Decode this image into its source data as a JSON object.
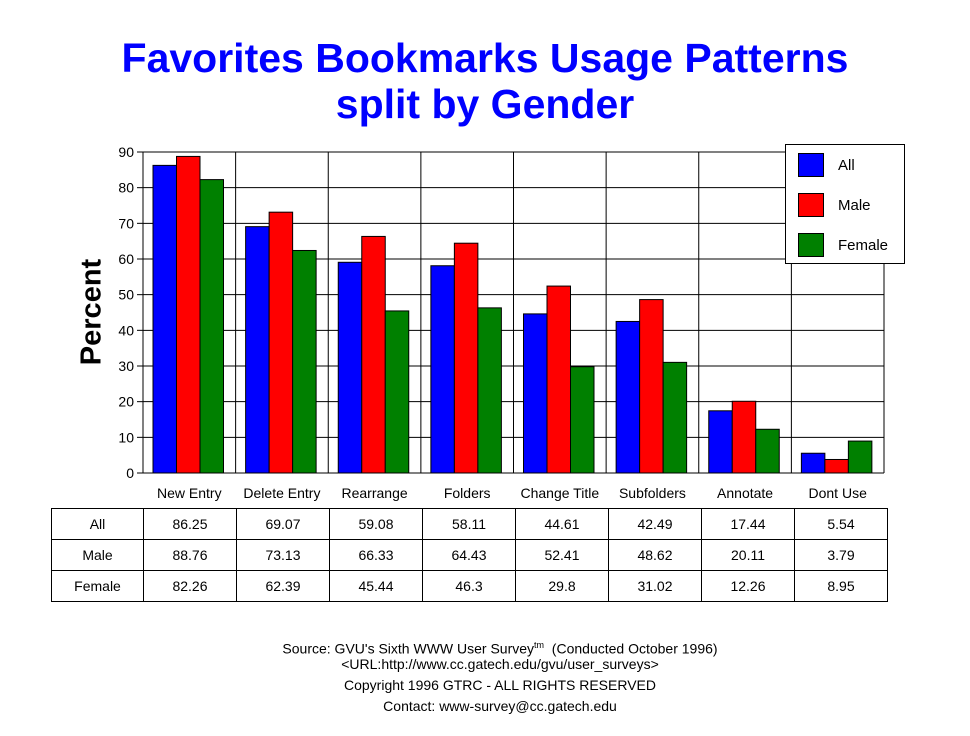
{
  "title_line1": "Favorites Bookmarks Usage Patterns",
  "title_line2": "split by Gender",
  "chart_data": {
    "type": "bar",
    "title": "Favorites Bookmarks Usage Patterns split by Gender",
    "ylabel": "Percent",
    "xlabel": "",
    "ylim": [
      0,
      90
    ],
    "yticks": [
      0,
      10,
      20,
      30,
      40,
      50,
      60,
      70,
      80,
      90
    ],
    "grid": true,
    "legend_position": "top-right",
    "categories": [
      "New Entry",
      "Delete Entry",
      "Rearrange",
      "Folders",
      "Change Title",
      "Subfolders",
      "Annotate",
      "Dont Use"
    ],
    "series": [
      {
        "name": "All",
        "color": "#0000ff",
        "values": [
          86.25,
          69.07,
          59.08,
          58.11,
          44.61,
          42.49,
          17.44,
          5.54
        ]
      },
      {
        "name": "Male",
        "color": "#ff0000",
        "values": [
          88.76,
          73.13,
          66.33,
          64.43,
          52.41,
          48.62,
          20.11,
          3.79
        ]
      },
      {
        "name": "Female",
        "color": "#008000",
        "values": [
          82.26,
          62.39,
          45.44,
          46.3,
          29.8,
          31.02,
          12.26,
          8.95
        ]
      }
    ]
  },
  "table": {
    "rows": [
      {
        "label": "All",
        "values": [
          "86.25",
          "69.07",
          "59.08",
          "58.11",
          "44.61",
          "42.49",
          "17.44",
          "5.54"
        ]
      },
      {
        "label": "Male",
        "values": [
          "88.76",
          "73.13",
          "66.33",
          "64.43",
          "52.41",
          "48.62",
          "20.11",
          "3.79"
        ]
      },
      {
        "label": "Female",
        "values": [
          "82.26",
          "62.39",
          "45.44",
          "46.3",
          "29.8",
          "31.02",
          "12.26",
          "8.95"
        ]
      }
    ]
  },
  "footer": {
    "source_prefix": "Source: GVU's Sixth WWW User Survey",
    "source_tm": "tm",
    "source_suffix": "  (Conducted October 1996)",
    "url": "<URL:http://www.cc.gatech.edu/gvu/user_surveys>",
    "copyright": "Copyright 1996 GTRC -  ALL RIGHTS RESERVED",
    "contact": "Contact: www-survey@cc.gatech.edu"
  }
}
